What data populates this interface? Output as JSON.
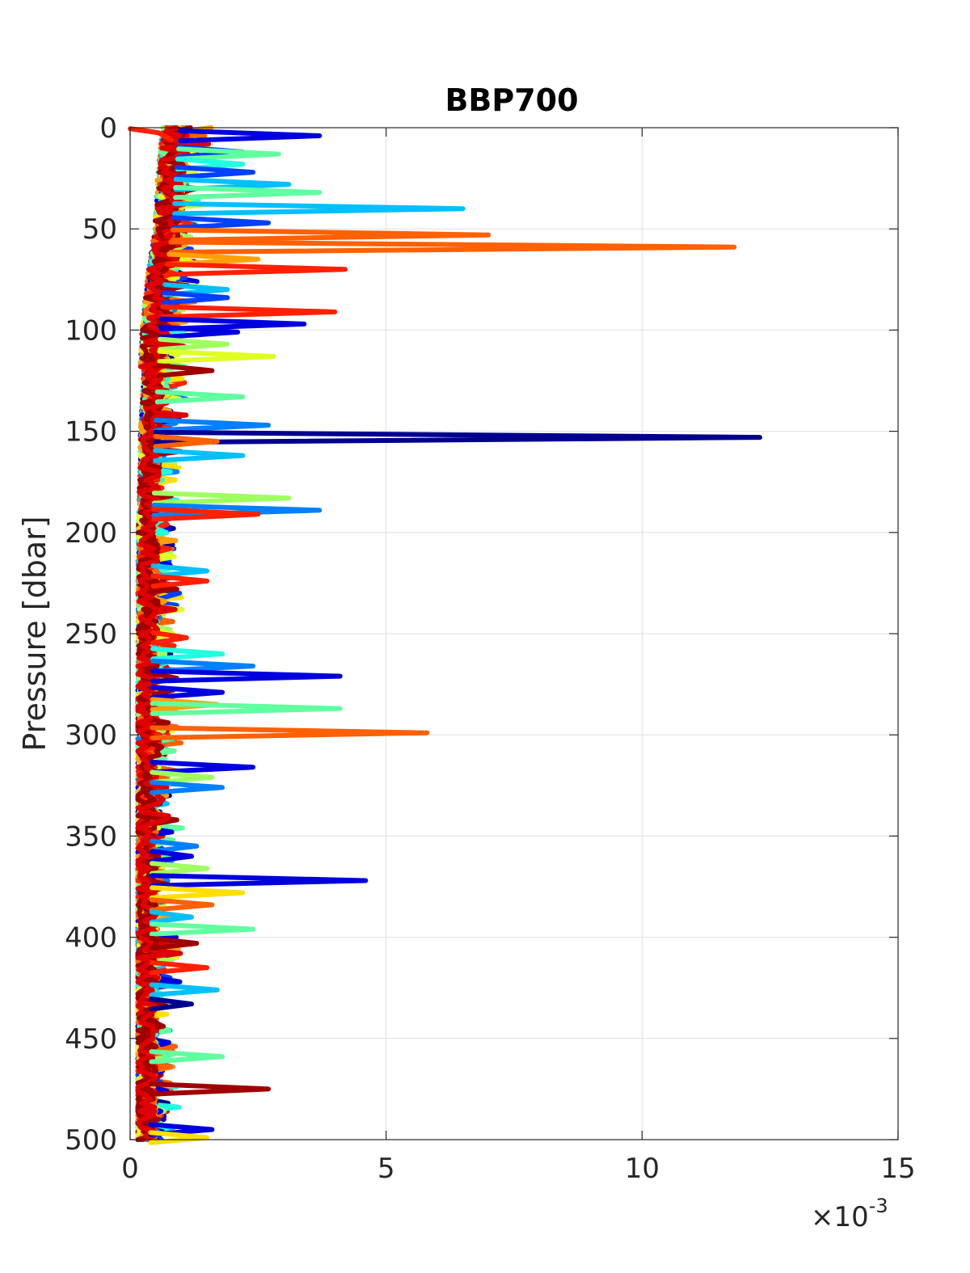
{
  "chart_data": {
    "type": "line",
    "title": "BBP700",
    "xlabel": "",
    "ylabel": "Pressure [dbar]",
    "x_multiplier_text": "×10",
    "x_multiplier_exp": "-3",
    "xlim": [
      0,
      15
    ],
    "ylim": [
      0,
      500
    ],
    "y_reversed": true,
    "grid": true,
    "xticks": [
      0,
      5,
      10,
      15
    ],
    "xtick_labels": [
      "0",
      "5",
      "10",
      "15"
    ],
    "yticks": [
      0,
      50,
      100,
      150,
      200,
      250,
      300,
      350,
      400,
      450,
      500
    ],
    "ytick_labels": [
      "0",
      "50",
      "100",
      "150",
      "200",
      "250",
      "300",
      "350",
      "400",
      "450",
      "500"
    ],
    "colormap": [
      "#00008f",
      "#0000df",
      "#0040ff",
      "#0080ff",
      "#00c0ff",
      "#20ffdf",
      "#60ff9f",
      "#a0ff60",
      "#dfff20",
      "#ffdf00",
      "#ffa000",
      "#ff6000",
      "#ff2000",
      "#df0000",
      "#9f0000"
    ],
    "background_profile": {
      "pressure": [
        0,
        25,
        50,
        75,
        100,
        125,
        150,
        175,
        200,
        250,
        300,
        350,
        400,
        450,
        500
      ],
      "bbp_e3": [
        0.9,
        0.8,
        0.75,
        0.6,
        0.5,
        0.45,
        0.4,
        0.38,
        0.35,
        0.35,
        0.33,
        0.33,
        0.32,
        0.32,
        0.3
      ]
    },
    "spikes": [
      {
        "pressure": 4,
        "value": 3.7,
        "color": "#0000df"
      },
      {
        "pressure": 12,
        "value": 2.2,
        "color": "#0040ff"
      },
      {
        "pressure": 13,
        "value": 2.9,
        "color": "#60ff9f"
      },
      {
        "pressure": 18,
        "value": 2.2,
        "color": "#20ffdf"
      },
      {
        "pressure": 22,
        "value": 2.4,
        "color": "#0040ff"
      },
      {
        "pressure": 28,
        "value": 3.1,
        "color": "#00c0ff"
      },
      {
        "pressure": 32,
        "value": 3.7,
        "color": "#60ff9f"
      },
      {
        "pressure": 40,
        "value": 6.5,
        "color": "#00c0ff"
      },
      {
        "pressure": 47,
        "value": 2.7,
        "color": "#0040ff"
      },
      {
        "pressure": 53,
        "value": 7.0,
        "color": "#ff6000"
      },
      {
        "pressure": 59,
        "value": 11.8,
        "color": "#ff6000"
      },
      {
        "pressure": 65,
        "value": 2.5,
        "color": "#ffa000"
      },
      {
        "pressure": 70,
        "value": 4.2,
        "color": "#ff2000"
      },
      {
        "pressure": 80,
        "value": 1.9,
        "color": "#00c0ff"
      },
      {
        "pressure": 84,
        "value": 1.9,
        "color": "#0040ff"
      },
      {
        "pressure": 91,
        "value": 4.0,
        "color": "#ff2000"
      },
      {
        "pressure": 97,
        "value": 3.4,
        "color": "#0000df"
      },
      {
        "pressure": 101,
        "value": 2.1,
        "color": "#0000df"
      },
      {
        "pressure": 107,
        "value": 1.9,
        "color": "#a0ff60"
      },
      {
        "pressure": 113,
        "value": 2.8,
        "color": "#dfff20"
      },
      {
        "pressure": 120,
        "value": 1.6,
        "color": "#9f0000"
      },
      {
        "pressure": 133,
        "value": 2.2,
        "color": "#60ff9f"
      },
      {
        "pressure": 147,
        "value": 2.7,
        "color": "#0080ff"
      },
      {
        "pressure": 153,
        "value": 12.3,
        "color": "#00008f"
      },
      {
        "pressure": 155,
        "value": 1.7,
        "color": "#ff6000"
      },
      {
        "pressure": 162,
        "value": 2.2,
        "color": "#00c0ff"
      },
      {
        "pressure": 183,
        "value": 3.1,
        "color": "#a0ff60"
      },
      {
        "pressure": 189,
        "value": 3.7,
        "color": "#0080ff"
      },
      {
        "pressure": 191,
        "value": 2.5,
        "color": "#ff2000"
      },
      {
        "pressure": 219,
        "value": 1.5,
        "color": "#00c0ff"
      },
      {
        "pressure": 224,
        "value": 1.5,
        "color": "#ff2000"
      },
      {
        "pressure": 252,
        "value": 1.1,
        "color": "#ff2000"
      },
      {
        "pressure": 260,
        "value": 1.8,
        "color": "#20ffdf"
      },
      {
        "pressure": 266,
        "value": 2.4,
        "color": "#0080ff"
      },
      {
        "pressure": 271,
        "value": 4.1,
        "color": "#0000df"
      },
      {
        "pressure": 279,
        "value": 1.8,
        "color": "#0000df"
      },
      {
        "pressure": 285,
        "value": 1.7,
        "color": "#ffa000"
      },
      {
        "pressure": 287,
        "value": 4.1,
        "color": "#60ff9f"
      },
      {
        "pressure": 299,
        "value": 5.8,
        "color": "#ff6000"
      },
      {
        "pressure": 316,
        "value": 2.4,
        "color": "#0000df"
      },
      {
        "pressure": 321,
        "value": 1.6,
        "color": "#a0ff60"
      },
      {
        "pressure": 326,
        "value": 1.8,
        "color": "#0080ff"
      },
      {
        "pressure": 355,
        "value": 1.3,
        "color": "#0080ff"
      },
      {
        "pressure": 360,
        "value": 1.2,
        "color": "#0000df"
      },
      {
        "pressure": 366,
        "value": 1.5,
        "color": "#a0ff60"
      },
      {
        "pressure": 372,
        "value": 4.6,
        "color": "#0000df"
      },
      {
        "pressure": 378,
        "value": 2.2,
        "color": "#ffdf00"
      },
      {
        "pressure": 384,
        "value": 1.6,
        "color": "#ff6000"
      },
      {
        "pressure": 390,
        "value": 1.2,
        "color": "#00c0ff"
      },
      {
        "pressure": 396,
        "value": 2.4,
        "color": "#60ff9f"
      },
      {
        "pressure": 403,
        "value": 1.3,
        "color": "#9f0000"
      },
      {
        "pressure": 415,
        "value": 1.5,
        "color": "#ff2000"
      },
      {
        "pressure": 426,
        "value": 1.7,
        "color": "#00c0ff"
      },
      {
        "pressure": 433,
        "value": 1.2,
        "color": "#00008f"
      },
      {
        "pressure": 459,
        "value": 1.8,
        "color": "#60ff9f"
      },
      {
        "pressure": 475,
        "value": 2.7,
        "color": "#9f0000"
      },
      {
        "pressure": 495,
        "value": 1.6,
        "color": "#0000df"
      },
      {
        "pressure": 499,
        "value": 1.5,
        "color": "#ffdf00"
      }
    ]
  }
}
